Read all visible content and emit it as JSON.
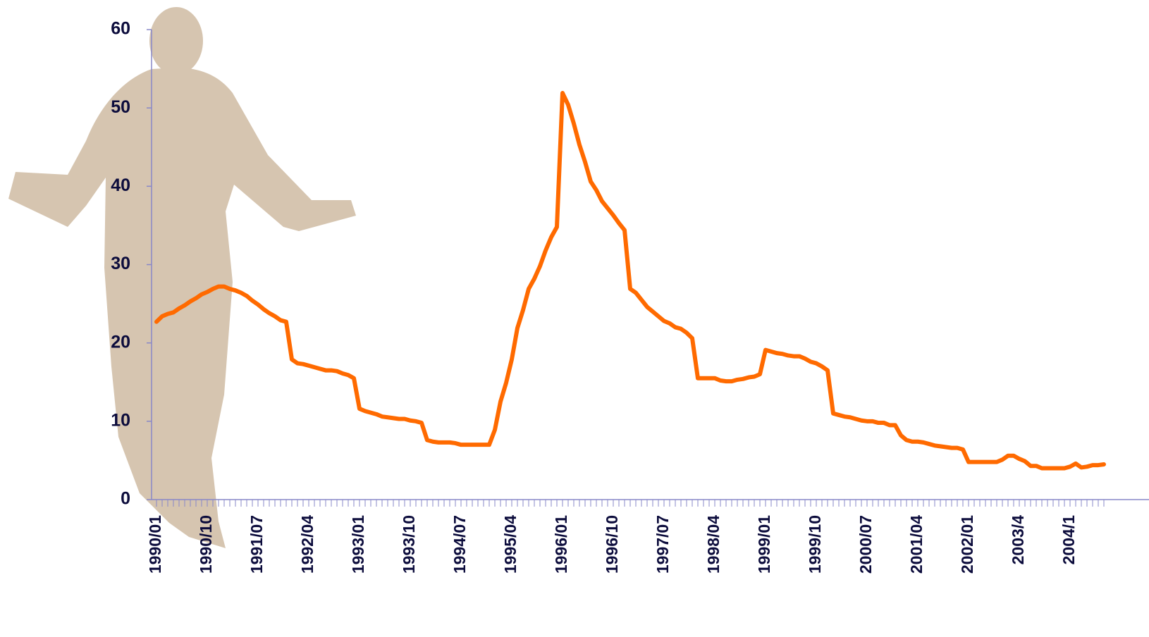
{
  "chart_data": {
    "type": "line",
    "color": "#ff6a00",
    "categories": [
      "1990/01",
      null,
      null,
      null,
      null,
      null,
      null,
      null,
      null,
      "1990/10",
      null,
      null,
      null,
      null,
      null,
      null,
      null,
      null,
      "1991/07",
      null,
      null,
      null,
      null,
      null,
      null,
      null,
      null,
      "1992/04",
      null,
      null,
      null,
      null,
      null,
      null,
      null,
      null,
      "1993/01",
      null,
      null,
      null,
      null,
      null,
      null,
      null,
      null,
      "1993/10",
      null,
      null,
      null,
      null,
      null,
      null,
      null,
      null,
      "1994/07",
      null,
      null,
      null,
      null,
      null,
      null,
      null,
      null,
      "1995/04",
      null,
      null,
      null,
      null,
      null,
      null,
      null,
      null,
      "1996/01",
      null,
      null,
      null,
      null,
      null,
      null,
      null,
      null,
      "1996/10",
      null,
      null,
      null,
      null,
      null,
      null,
      null,
      null,
      "1997/07",
      null,
      null,
      null,
      null,
      null,
      null,
      null,
      null,
      "1998/04",
      null,
      null,
      null,
      null,
      null,
      null,
      null,
      null,
      "1999/01",
      null,
      null,
      null,
      null,
      null,
      null,
      null,
      null,
      "1999/10",
      null,
      null,
      null,
      null,
      null,
      null,
      null,
      null,
      "2000/07",
      null,
      null,
      null,
      null,
      null,
      null,
      null,
      null,
      "2001/04",
      null,
      null,
      null,
      null,
      null,
      null,
      null,
      null,
      "2002/01",
      null,
      null,
      null,
      null,
      null,
      null,
      null,
      null,
      "2003/4",
      null,
      null,
      null,
      null,
      null,
      null,
      null,
      null,
      "2004/1",
      null,
      null,
      null,
      null,
      null,
      null
    ],
    "values": [
      22.7,
      23.4,
      23.7,
      23.9,
      24.4,
      24.8,
      25.3,
      25.7,
      26.2,
      26.5,
      26.9,
      27.2,
      27.2,
      26.9,
      26.7,
      26.4,
      26.0,
      25.4,
      24.9,
      24.3,
      23.8,
      23.4,
      22.9,
      22.7,
      17.9,
      17.4,
      17.3,
      17.1,
      16.9,
      16.7,
      16.5,
      16.5,
      16.4,
      16.1,
      15.9,
      15.5,
      11.6,
      11.3,
      11.1,
      10.9,
      10.6,
      10.5,
      10.4,
      10.3,
      10.3,
      10.1,
      10.0,
      9.8,
      7.6,
      7.4,
      7.3,
      7.3,
      7.3,
      7.2,
      7.0,
      7.0,
      7.0,
      7.0,
      7.0,
      7.0,
      8.9,
      12.5,
      14.9,
      17.9,
      21.9,
      24.2,
      26.9,
      28.2,
      29.8,
      31.8,
      33.5,
      34.8,
      51.9,
      50.4,
      48.0,
      45.3,
      43.1,
      40.6,
      39.5,
      38.1,
      37.2,
      36.3,
      35.3,
      34.4,
      26.9,
      26.4,
      25.5,
      24.6,
      24.0,
      23.4,
      22.8,
      22.5,
      22.0,
      21.8,
      21.3,
      20.6,
      15.5,
      15.5,
      15.5,
      15.5,
      15.2,
      15.1,
      15.1,
      15.3,
      15.4,
      15.6,
      15.7,
      16.0,
      19.1,
      18.9,
      18.7,
      18.6,
      18.4,
      18.3,
      18.3,
      18.0,
      17.6,
      17.4,
      17.0,
      16.5,
      11.0,
      10.8,
      10.6,
      10.5,
      10.3,
      10.1,
      10.0,
      10.0,
      9.8,
      9.8,
      9.5,
      9.5,
      8.2,
      7.6,
      7.4,
      7.4,
      7.3,
      7.1,
      6.9,
      6.8,
      6.7,
      6.6,
      6.6,
      6.4,
      4.8,
      4.8,
      4.8,
      4.8,
      4.8,
      4.8,
      5.1,
      5.6,
      5.6,
      5.2,
      4.9,
      4.3,
      4.3,
      4.0,
      4.0,
      4.0,
      4.0,
      4.0,
      4.2,
      4.6,
      4.1,
      4.2,
      4.4,
      4.4,
      4.5
    ],
    "ylim": [
      0,
      60
    ],
    "yticks": [
      0,
      10,
      20,
      30,
      40,
      50,
      60
    ]
  }
}
